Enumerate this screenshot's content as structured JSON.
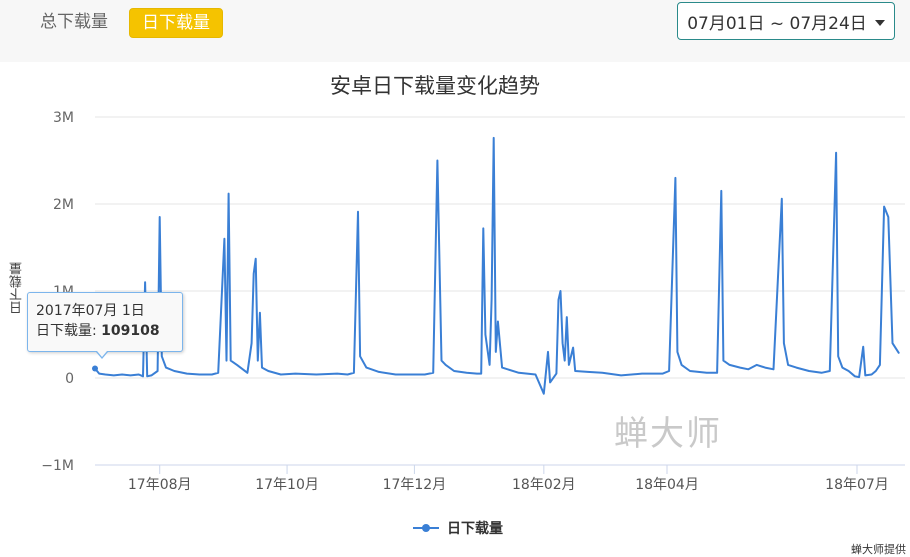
{
  "tabs": [
    {
      "label": "总下载量",
      "active": false
    },
    {
      "label": "日下载量",
      "active": true
    }
  ],
  "date_range": "07月01日 ~ 07月24日",
  "tooltip": {
    "date": "2017年07月 1日",
    "series": "日下载量",
    "value": "109108"
  },
  "watermark": "蝉大师",
  "credit": "蝉大师提供",
  "colors": {
    "series": "#3a7fd5",
    "accent": "#f5c300",
    "tooltip_border": "#7cb5ec"
  },
  "chart_data": {
    "type": "line",
    "title": "安卓日下载量变化趋势",
    "ylabel": "日下载量",
    "xlabel": "",
    "ylim": [
      -1000000,
      3000000
    ],
    "yticks": [
      -1000000,
      0,
      1000000,
      2000000,
      3000000
    ],
    "ytick_labels": [
      "−1M",
      "0",
      "1M",
      "2M",
      "3M"
    ],
    "xlim": [
      "2017-07-01",
      "2018-07-24"
    ],
    "xticks": [
      "2017-08-01",
      "2017-10-01",
      "2017-12-01",
      "2018-02-01",
      "2018-04-01",
      "2018-07-01"
    ],
    "xtick_labels": [
      "17年08月",
      "17年10月",
      "17年12月",
      "18年02月",
      "18年04月",
      "18年07月"
    ],
    "grid": true,
    "legend_position": "bottom",
    "series": [
      {
        "name": "日下载量",
        "points": [
          [
            "2017-07-01",
            109108
          ],
          [
            "2017-07-03",
            50000
          ],
          [
            "2017-07-06",
            40000
          ],
          [
            "2017-07-10",
            30000
          ],
          [
            "2017-07-14",
            40000
          ],
          [
            "2017-07-18",
            30000
          ],
          [
            "2017-07-22",
            40000
          ],
          [
            "2017-07-24",
            20000
          ],
          [
            "2017-07-25",
            1100000
          ],
          [
            "2017-07-26",
            20000
          ],
          [
            "2017-07-28",
            30000
          ],
          [
            "2017-07-31",
            80000
          ],
          [
            "2017-08-01",
            1850000
          ],
          [
            "2017-08-02",
            250000
          ],
          [
            "2017-08-04",
            120000
          ],
          [
            "2017-08-08",
            80000
          ],
          [
            "2017-08-14",
            50000
          ],
          [
            "2017-08-20",
            40000
          ],
          [
            "2017-08-26",
            40000
          ],
          [
            "2017-08-29",
            60000
          ],
          [
            "2017-09-01",
            1600000
          ],
          [
            "2017-09-02",
            200000
          ],
          [
            "2017-09-03",
            2120000
          ],
          [
            "2017-09-04",
            200000
          ],
          [
            "2017-09-07",
            150000
          ],
          [
            "2017-09-12",
            60000
          ],
          [
            "2017-09-14",
            400000
          ],
          [
            "2017-09-15",
            1200000
          ],
          [
            "2017-09-16",
            1370000
          ],
          [
            "2017-09-17",
            200000
          ],
          [
            "2017-09-18",
            750000
          ],
          [
            "2017-09-19",
            120000
          ],
          [
            "2017-09-22",
            80000
          ],
          [
            "2017-09-28",
            40000
          ],
          [
            "2017-10-05",
            50000
          ],
          [
            "2017-10-15",
            40000
          ],
          [
            "2017-10-25",
            50000
          ],
          [
            "2017-10-30",
            40000
          ],
          [
            "2017-11-02",
            60000
          ],
          [
            "2017-11-04",
            1910000
          ],
          [
            "2017-11-05",
            250000
          ],
          [
            "2017-11-08",
            120000
          ],
          [
            "2017-11-14",
            70000
          ],
          [
            "2017-11-22",
            40000
          ],
          [
            "2017-11-30",
            40000
          ],
          [
            "2017-12-06",
            40000
          ],
          [
            "2017-12-10",
            60000
          ],
          [
            "2017-12-12",
            2500000
          ],
          [
            "2017-12-14",
            200000
          ],
          [
            "2017-12-16",
            150000
          ],
          [
            "2017-12-20",
            80000
          ],
          [
            "2017-12-26",
            60000
          ],
          [
            "2017-12-31",
            50000
          ],
          [
            "2018-01-02",
            50000
          ],
          [
            "2018-01-03",
            1720000
          ],
          [
            "2018-01-04",
            500000
          ],
          [
            "2018-01-06",
            150000
          ],
          [
            "2018-01-07",
            900000
          ],
          [
            "2018-01-08",
            2760000
          ],
          [
            "2018-01-09",
            300000
          ],
          [
            "2018-01-10",
            650000
          ],
          [
            "2018-01-12",
            120000
          ],
          [
            "2018-01-20",
            60000
          ],
          [
            "2018-01-28",
            40000
          ],
          [
            "2018-02-01",
            -180000
          ],
          [
            "2018-02-03",
            300000
          ],
          [
            "2018-02-04",
            -50000
          ],
          [
            "2018-02-07",
            50000
          ],
          [
            "2018-02-08",
            900000
          ],
          [
            "2018-02-09",
            1000000
          ],
          [
            "2018-02-10",
            400000
          ],
          [
            "2018-02-11",
            200000
          ],
          [
            "2018-02-12",
            700000
          ],
          [
            "2018-02-13",
            150000
          ],
          [
            "2018-02-15",
            350000
          ],
          [
            "2018-02-16",
            80000
          ],
          [
            "2018-02-22",
            70000
          ],
          [
            "2018-03-01",
            60000
          ],
          [
            "2018-03-10",
            30000
          ],
          [
            "2018-03-20",
            50000
          ],
          [
            "2018-03-30",
            50000
          ],
          [
            "2018-04-02",
            80000
          ],
          [
            "2018-04-05",
            2300000
          ],
          [
            "2018-04-06",
            300000
          ],
          [
            "2018-04-08",
            150000
          ],
          [
            "2018-04-12",
            80000
          ],
          [
            "2018-04-20",
            60000
          ],
          [
            "2018-04-25",
            60000
          ],
          [
            "2018-04-27",
            2150000
          ],
          [
            "2018-04-28",
            200000
          ],
          [
            "2018-05-01",
            150000
          ],
          [
            "2018-05-06",
            120000
          ],
          [
            "2018-05-10",
            100000
          ],
          [
            "2018-05-14",
            150000
          ],
          [
            "2018-05-18",
            120000
          ],
          [
            "2018-05-22",
            100000
          ],
          [
            "2018-05-26",
            2060000
          ],
          [
            "2018-05-27",
            400000
          ],
          [
            "2018-05-29",
            150000
          ],
          [
            "2018-06-02",
            120000
          ],
          [
            "2018-06-08",
            80000
          ],
          [
            "2018-06-14",
            60000
          ],
          [
            "2018-06-18",
            80000
          ],
          [
            "2018-06-21",
            2590000
          ],
          [
            "2018-06-22",
            250000
          ],
          [
            "2018-06-24",
            120000
          ],
          [
            "2018-06-27",
            80000
          ],
          [
            "2018-06-30",
            20000
          ],
          [
            "2018-07-02",
            10000
          ],
          [
            "2018-07-04",
            360000
          ],
          [
            "2018-07-05",
            30000
          ],
          [
            "2018-07-08",
            40000
          ],
          [
            "2018-07-10",
            80000
          ],
          [
            "2018-07-12",
            150000
          ],
          [
            "2018-07-14",
            1970000
          ],
          [
            "2018-07-16",
            1850000
          ],
          [
            "2018-07-18",
            400000
          ],
          [
            "2018-07-21",
            290000
          ]
        ]
      }
    ]
  }
}
